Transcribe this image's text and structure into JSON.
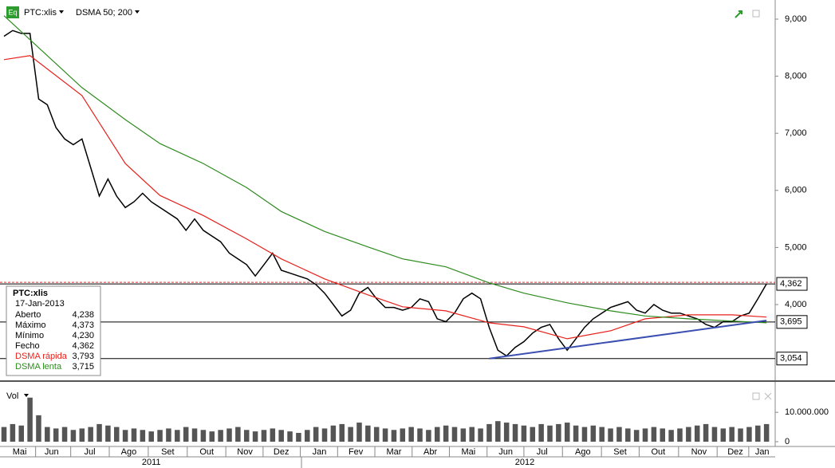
{
  "chart_data": {
    "type": "line",
    "symbol": "PTC:xlis",
    "indicator": "DSMA 50; 200",
    "badge": "Eq",
    "volume_label": "Vol",
    "xlim": [
      0,
      89
    ],
    "ylim": [
      2659,
      9335
    ],
    "yticks": [
      {
        "value": 9000,
        "label": "9,000"
      },
      {
        "value": 8000,
        "label": "8,000"
      },
      {
        "value": 7000,
        "label": "7,000"
      },
      {
        "value": 6000,
        "label": "6,000"
      },
      {
        "value": 5000,
        "label": "5,000"
      },
      {
        "value": 4000,
        "label": "4,000"
      }
    ],
    "xticks": [
      {
        "value": 1.8,
        "label": "Mai"
      },
      {
        "value": 5.5,
        "label": "Jun"
      },
      {
        "value": 9.9,
        "label": "Jul"
      },
      {
        "value": 14.4,
        "label": "Ago"
      },
      {
        "value": 18.9,
        "label": "Set"
      },
      {
        "value": 23.4,
        "label": "Out"
      },
      {
        "value": 27.8,
        "label": "Nov"
      },
      {
        "value": 32.0,
        "label": "Dez"
      },
      {
        "value": 36.4,
        "label": "Jan"
      },
      {
        "value": 40.6,
        "label": "Fev"
      },
      {
        "value": 45.0,
        "label": "Mar"
      },
      {
        "value": 49.2,
        "label": "Abr"
      },
      {
        "value": 53.6,
        "label": "Mai"
      },
      {
        "value": 57.9,
        "label": "Jun"
      },
      {
        "value": 62.1,
        "label": "Jul"
      },
      {
        "value": 66.8,
        "label": "Ago"
      },
      {
        "value": 71.1,
        "label": "Set"
      },
      {
        "value": 75.5,
        "label": "Out"
      },
      {
        "value": 80.2,
        "label": "Nov"
      },
      {
        "value": 84.4,
        "label": "Dez"
      },
      {
        "value": 87.5,
        "label": "Jan"
      }
    ],
    "years": [
      {
        "value": 17.0,
        "label": "2011"
      },
      {
        "value": 60.1,
        "label": "2012"
      }
    ],
    "series": [
      {
        "name": "PTC:xlis",
        "color": "#000000",
        "values": [
          8700,
          8800,
          8750,
          8750,
          7600,
          7500,
          7100,
          6900,
          6800,
          6900,
          6400,
          5900,
          6200,
          5900,
          5700,
          5800,
          5950,
          5800,
          5700,
          5600,
          5500,
          5300,
          5500,
          5300,
          5200,
          5100,
          4900,
          4800,
          4700,
          4500,
          4700,
          4900,
          4600,
          4550,
          4500,
          4450,
          4350,
          4200,
          4000,
          3800,
          3900,
          4200,
          4300,
          4100,
          3950,
          3950,
          3900,
          3950,
          4100,
          4050,
          3750,
          3700,
          3850,
          4100,
          4200,
          4100,
          3600,
          3200,
          3100,
          3250,
          3350,
          3500,
          3600,
          3650,
          3400,
          3200,
          3400,
          3600,
          3750,
          3850,
          3950,
          4000,
          4050,
          3900,
          3850,
          4000,
          3900,
          3850,
          3850,
          3800,
          3750,
          3650,
          3600,
          3700,
          3700,
          3800,
          3850,
          4100,
          4362
        ]
      },
      {
        "name": "DSMA rápida",
        "color": "#e8211b",
        "x": [
          0,
          3,
          9,
          14,
          18,
          23,
          28,
          32,
          37,
          42,
          46,
          51,
          56,
          60,
          65,
          70,
          74,
          79,
          84,
          88
        ],
        "values": [
          8290,
          8360,
          7660,
          6470,
          5910,
          5560,
          5150,
          4800,
          4450,
          4170,
          3960,
          3890,
          3680,
          3610,
          3400,
          3540,
          3750,
          3820,
          3820,
          3780
        ]
      },
      {
        "name": "DSMA lenta",
        "color": "#2e8b1f",
        "x": [
          0,
          9,
          14,
          18,
          23,
          28,
          32,
          37,
          42,
          46,
          51,
          56,
          60,
          65,
          70,
          74,
          79,
          84,
          88
        ],
        "values": [
          9060,
          7800,
          7240,
          6820,
          6470,
          6050,
          5630,
          5280,
          5010,
          4800,
          4660,
          4380,
          4200,
          4030,
          3890,
          3800,
          3750,
          3710,
          3680
        ]
      }
    ],
    "levels": [
      {
        "value": 4362,
        "label": "4,362"
      },
      {
        "value": 3695,
        "label": "3,695"
      },
      {
        "value": 3054,
        "label": "3,054"
      }
    ],
    "trendline": {
      "x": [
        56,
        88
      ],
      "values": [
        3054,
        3720
      ],
      "color": "#3b4fb0"
    },
    "volume": {
      "color": "#555555",
      "ylim": [
        0,
        19000000
      ],
      "yticks": [
        {
          "value": 10000000,
          "label": "10.000.000"
        },
        0
      ],
      "values": [
        5000000,
        6000000,
        5500000,
        15000000,
        9000000,
        5000000,
        4500000,
        5000000,
        4000000,
        4500000,
        5000000,
        6000000,
        5500000,
        5000000,
        4000000,
        4500000,
        4000000,
        3500000,
        4000000,
        4500000,
        4000000,
        5000000,
        4500000,
        4000000,
        3500000,
        4000000,
        4500000,
        5000000,
        4000000,
        3500000,
        4000000,
        4500000,
        4000000,
        3500000,
        3000000,
        4000000,
        5000000,
        4500000,
        5500000,
        6000000,
        5000000,
        6500000,
        5500000,
        5000000,
        4500000,
        4000000,
        4500000,
        5000000,
        4500000,
        4000000,
        5000000,
        5500000,
        5000000,
        4500000,
        5000000,
        4500000,
        6000000,
        7000000,
        6500000,
        6000000,
        5500000,
        5000000,
        6000000,
        5500000,
        6000000,
        6500000,
        5500000,
        5000000,
        5500000,
        5000000,
        4500000,
        5000000,
        4500000,
        4000000,
        4500000,
        5000000,
        4500000,
        4000000,
        4500000,
        5000000,
        5500000,
        6000000,
        5000000,
        4500000,
        5000000,
        4500000,
        5000000,
        5500000,
        6000000
      ]
    },
    "info": {
      "title": "PTC:xlis",
      "date": "17-Jan-2013",
      "rows": [
        [
          "Aberto",
          "4,238"
        ],
        [
          "Máximo",
          "4,373"
        ],
        [
          "Mínimo",
          "4,230"
        ],
        [
          "Fecho",
          "4,362"
        ],
        [
          "DSMA rápida",
          "3,793"
        ],
        [
          "DSMA lenta",
          "3,715"
        ]
      ]
    }
  }
}
